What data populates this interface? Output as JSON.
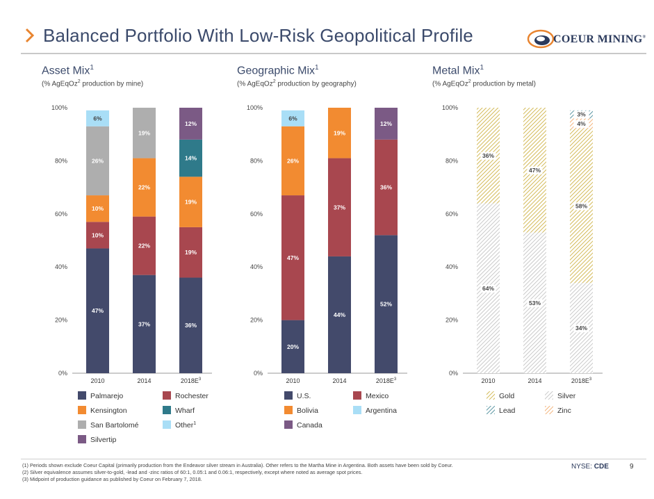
{
  "header": {
    "title": "Balanced Portfolio With Low-Risk Geopolitical Profile",
    "logo_text": "COEUR MINING",
    "logo_mark": "®"
  },
  "panels": [
    {
      "title": "Asset Mix",
      "title_sup": "1",
      "subtitle_a": "(% AgEqOz",
      "subtitle_sup": "2",
      "subtitle_b": " production by mine)"
    },
    {
      "title": "Geographic Mix",
      "title_sup": "1",
      "subtitle_a": "(% AgEqOz",
      "subtitle_sup": "2",
      "subtitle_b": " production by geography)"
    },
    {
      "title": "Metal Mix",
      "title_sup": "1",
      "subtitle_a": "(% AgEqOz",
      "subtitle_sup": "2",
      "subtitle_b": " production by metal)"
    }
  ],
  "colors": {
    "navy": "#434a6b",
    "red": "#a8474f",
    "orange": "#f28b31",
    "gray": "#aeaeae",
    "teal": "#2f7a8a",
    "purple": "#7b5a85",
    "lightblue": "#a9def6",
    "gold": "#c9a92e",
    "silver": "#bdbdbd",
    "zinc": "#f0a25c"
  },
  "chart_data": [
    {
      "type": "bar",
      "stacked": true,
      "categories": [
        "2010",
        "2014",
        "2018E"
      ],
      "category_sup": [
        "",
        "",
        "3"
      ],
      "ylim": [
        0,
        100
      ],
      "yticks": [
        "0%",
        "20%",
        "40%",
        "60%",
        "80%",
        "100%"
      ],
      "series": [
        {
          "name": "Palmarejo",
          "color": "navy",
          "values": [
            47,
            37,
            36
          ],
          "labels": [
            "47%",
            "37%",
            "36%"
          ]
        },
        {
          "name": "Rochester",
          "color": "red",
          "values": [
            10,
            22,
            19
          ],
          "labels": [
            "10%",
            "22%",
            "19%"
          ]
        },
        {
          "name": "Kensington",
          "color": "orange",
          "values": [
            10,
            22,
            19
          ],
          "labels": [
            "10%",
            "22%",
            "19%"
          ]
        },
        {
          "name": "San Bartolomé",
          "color": "gray",
          "values": [
            26,
            19,
            0
          ],
          "labels": [
            "26%",
            "19%",
            ""
          ]
        },
        {
          "name": "Wharf",
          "color": "teal",
          "values": [
            0,
            0,
            14
          ],
          "labels": [
            "",
            "",
            "14%"
          ]
        },
        {
          "name": "Other",
          "name_sup": "1",
          "color": "lightblue",
          "values": [
            6,
            0,
            0
          ],
          "labels": [
            "6%",
            "",
            ""
          ]
        },
        {
          "name": "Silvertip",
          "color": "purple",
          "values": [
            0,
            0,
            12
          ],
          "labels": [
            "",
            "",
            "12%"
          ]
        }
      ],
      "legend_order": [
        "Palmarejo",
        "Rochester",
        "Kensington",
        "Wharf",
        "San Bartolomé",
        "Other",
        "Silvertip"
      ]
    },
    {
      "type": "bar",
      "stacked": true,
      "categories": [
        "2010",
        "2014",
        "2018E"
      ],
      "category_sup": [
        "",
        "",
        "3"
      ],
      "ylim": [
        0,
        100
      ],
      "yticks": [
        "0%",
        "20%",
        "40%",
        "60%",
        "80%",
        "100%"
      ],
      "series": [
        {
          "name": "U.S.",
          "color": "navy",
          "values": [
            20,
            44,
            52
          ],
          "labels": [
            "20%",
            "44%",
            "52%"
          ]
        },
        {
          "name": "Mexico",
          "color": "red",
          "values": [
            47,
            37,
            36
          ],
          "labels": [
            "47%",
            "37%",
            "36%"
          ]
        },
        {
          "name": "Bolivia",
          "color": "orange",
          "values": [
            26,
            19,
            0
          ],
          "labels": [
            "26%",
            "19%",
            ""
          ]
        },
        {
          "name": "Argentina",
          "color": "lightblue",
          "values": [
            6,
            0,
            0
          ],
          "labels": [
            "6%",
            "",
            ""
          ]
        },
        {
          "name": "Canada",
          "color": "purple",
          "values": [
            0,
            0,
            12
          ],
          "labels": [
            "",
            "",
            "12%"
          ]
        }
      ],
      "legend_order": [
        "U.S.",
        "Mexico",
        "Bolivia",
        "Argentina",
        "Canada"
      ]
    },
    {
      "type": "bar",
      "stacked": true,
      "hatched": true,
      "categories": [
        "2010",
        "2014",
        "2018E"
      ],
      "category_sup": [
        "",
        "",
        "3"
      ],
      "ylim": [
        0,
        100
      ],
      "yticks": [
        "0%",
        "20%",
        "40%",
        "60%",
        "80%",
        "100%"
      ],
      "series": [
        {
          "name": "Silver",
          "color": "silver",
          "values": [
            64,
            53,
            34
          ],
          "labels": [
            "64%",
            "53%",
            "34%"
          ]
        },
        {
          "name": "Gold",
          "color": "gold",
          "values": [
            36,
            47,
            58
          ],
          "labels": [
            "36%",
            "47%",
            "58%"
          ]
        },
        {
          "name": "Zinc",
          "color": "zinc",
          "values": [
            0,
            0,
            4
          ],
          "labels": [
            "",
            "",
            "4%"
          ]
        },
        {
          "name": "Lead",
          "color": "teal",
          "values": [
            0,
            0,
            3
          ],
          "labels": [
            "",
            "",
            "3%"
          ]
        }
      ],
      "legend_order": [
        "Gold",
        "Silver",
        "Lead",
        "Zinc"
      ]
    }
  ],
  "footnotes": [
    "(1) Periods shown exclude Coeur Capital (primarily production from the Endeavor silver stream in Australia). Other refers to the Martha Mine in Argentina. Both assets have been sold by Coeur.",
    "(2) Silver equivalence assumes silver-to-gold, -lead and -zinc ratios of 60:1, 0.05:1 and 0.06:1, respectively, except where noted as average spot prices.",
    "(3) Midpoint of production guidance as published by Coeur on February 7, 2018."
  ],
  "footer": {
    "ticker_prefix": "NYSE: ",
    "ticker": "CDE",
    "page_number": "9"
  }
}
